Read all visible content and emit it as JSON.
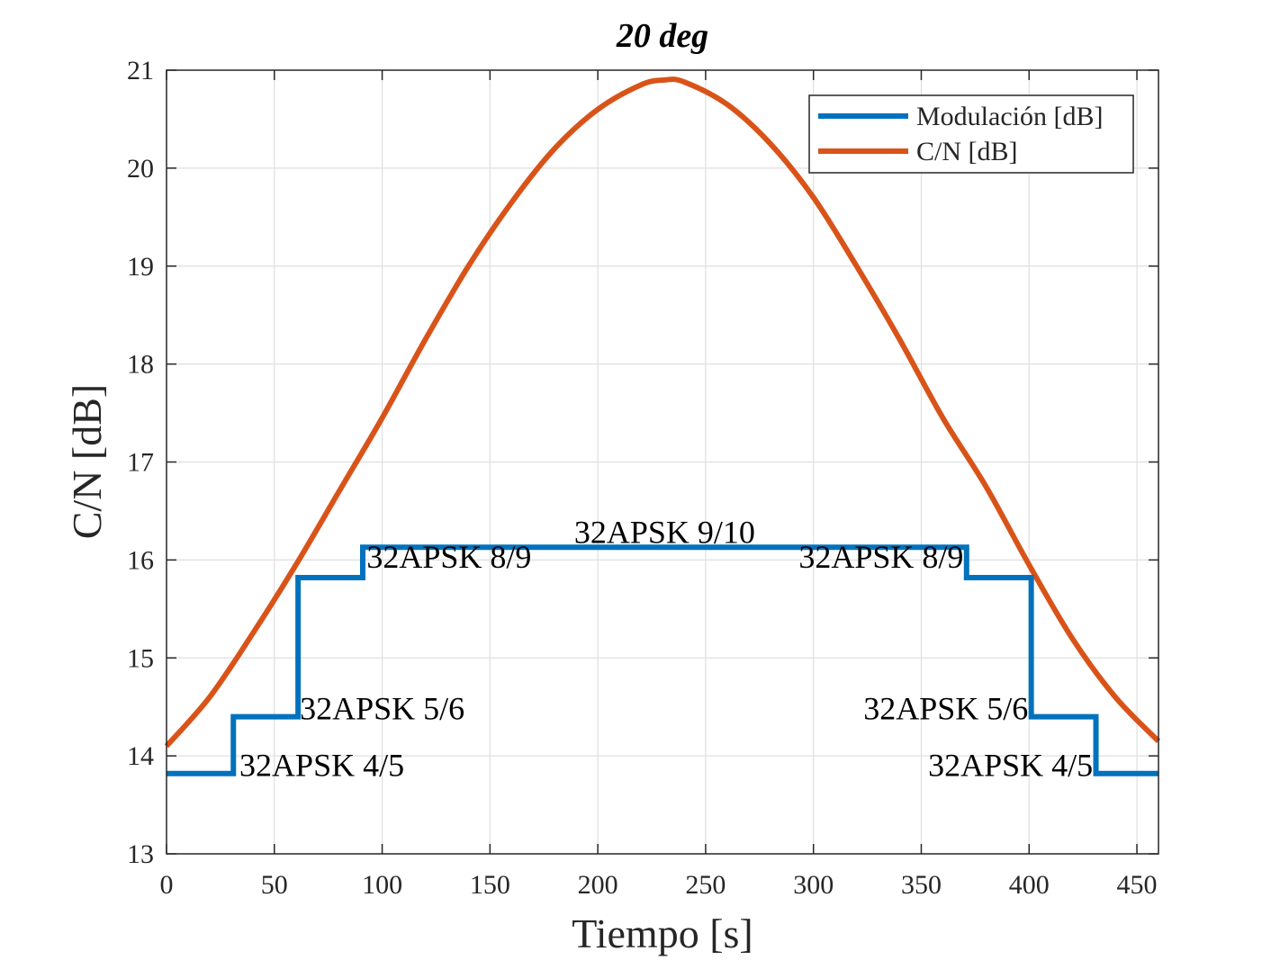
{
  "chart_data": {
    "type": "line",
    "title": "20 deg",
    "xlabel": "Tiempo [s]",
    "ylabel": "C/N [dB]",
    "xlim": [
      0,
      460
    ],
    "ylim": [
      13,
      21
    ],
    "xticks": [
      0,
      50,
      100,
      150,
      200,
      250,
      300,
      350,
      400,
      450
    ],
    "yticks": [
      13,
      14,
      15,
      16,
      17,
      18,
      19,
      20,
      21
    ],
    "grid": true,
    "legend_location": "top-right",
    "legend": [
      "Modulación [dB]",
      "C/N [dB]"
    ],
    "series": [
      {
        "name": "Modulación [dB]",
        "color": "#0072BD",
        "style": "step",
        "x": [
          0,
          31,
          31,
          61,
          61,
          91,
          91,
          371,
          371,
          401,
          401,
          431,
          431,
          460
        ],
        "y": [
          13.82,
          13.82,
          14.4,
          14.4,
          15.82,
          15.82,
          16.13,
          16.13,
          15.82,
          15.82,
          14.4,
          14.4,
          13.82,
          13.82
        ]
      },
      {
        "name": "C/N [dB]",
        "color": "#D95319",
        "style": "line",
        "x": [
          0,
          20,
          40,
          60,
          80,
          100,
          120,
          140,
          160,
          180,
          200,
          220,
          231,
          240,
          260,
          280,
          300,
          320,
          340,
          360,
          380,
          400,
          420,
          440,
          460
        ],
        "y": [
          14.1,
          14.6,
          15.25,
          15.95,
          16.7,
          17.45,
          18.25,
          19.0,
          19.65,
          20.2,
          20.6,
          20.85,
          20.9,
          20.88,
          20.65,
          20.25,
          19.7,
          19.0,
          18.25,
          17.45,
          16.75,
          15.95,
          15.2,
          14.6,
          14.15
        ]
      }
    ],
    "annotations": [
      {
        "text": "32APSK 4/5",
        "x": 33,
        "y": 13.82,
        "anchor": "start"
      },
      {
        "text": "32APSK 5/6",
        "x": 61,
        "y": 14.4,
        "anchor": "start"
      },
      {
        "text": "32APSK 8/9",
        "x": 92,
        "y": 15.95,
        "anchor": "start"
      },
      {
        "text": "32APSK 9/10",
        "x": 231,
        "y": 16.2,
        "anchor": "middle"
      },
      {
        "text": "32APSK 8/9",
        "x": 370,
        "y": 15.95,
        "anchor": "end"
      },
      {
        "text": "32APSK 5/6",
        "x": 400,
        "y": 14.4,
        "anchor": "end"
      },
      {
        "text": "32APSK 4/5",
        "x": 430,
        "y": 13.82,
        "anchor": "end"
      }
    ]
  }
}
